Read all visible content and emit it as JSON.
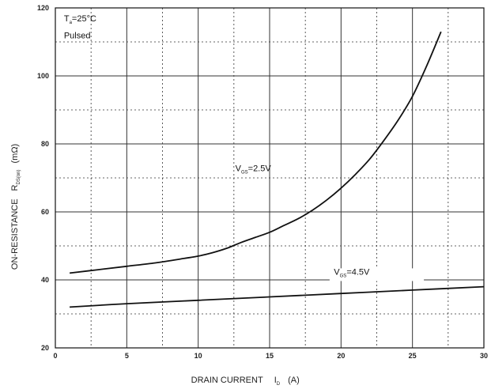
{
  "chart_data": {
    "type": "line",
    "xlabel": {
      "main": "DRAIN CURRENT",
      "symbol": "I",
      "sub": "D",
      "unit": "(A)"
    },
    "ylabel": {
      "main": "ON-RESISTANCE",
      "symbol": "R",
      "sub": "DS(on)",
      "unit": "(mΩ)"
    },
    "xlim": [
      0,
      30
    ],
    "ylim": [
      20,
      120
    ],
    "x_ticks": [
      0,
      5,
      10,
      15,
      20,
      25,
      30
    ],
    "y_ticks": [
      20,
      40,
      60,
      80,
      100,
      120
    ],
    "x_tick_labels": [
      "0",
      "5",
      "10",
      "15",
      "20",
      "25",
      "30"
    ],
    "y_tick_labels": [
      "20",
      "40",
      "60",
      "80",
      "100",
      "120"
    ],
    "grid": true,
    "conditions": {
      "line1_sym": "T",
      "line1_sub": "a",
      "line1_rest": "=25°C",
      "line2": "Pulsed"
    },
    "series": [
      {
        "name": "VGS=2.5V",
        "label_sym": "V",
        "label_sub": "GS",
        "label_rest": "=2.5V",
        "x": [
          1,
          3,
          5,
          7,
          9,
          10,
          11,
          12,
          13,
          14,
          15,
          16,
          17,
          18,
          19,
          20,
          21,
          22,
          23,
          24,
          25,
          26,
          27
        ],
        "y": [
          42,
          43,
          44,
          45,
          46.3,
          47,
          48,
          49.3,
          51,
          52.5,
          54,
          56,
          58,
          60.5,
          63.5,
          67,
          71,
          75.5,
          81,
          87,
          94,
          103,
          113
        ]
      },
      {
        "name": "VGS=4.5V",
        "label_sym": "V",
        "label_sub": "GS",
        "label_rest": "=4.5V",
        "x": [
          1,
          5,
          10,
          15,
          20,
          25,
          30
        ],
        "y": [
          32,
          33,
          34,
          35,
          36,
          37,
          38
        ]
      }
    ]
  }
}
